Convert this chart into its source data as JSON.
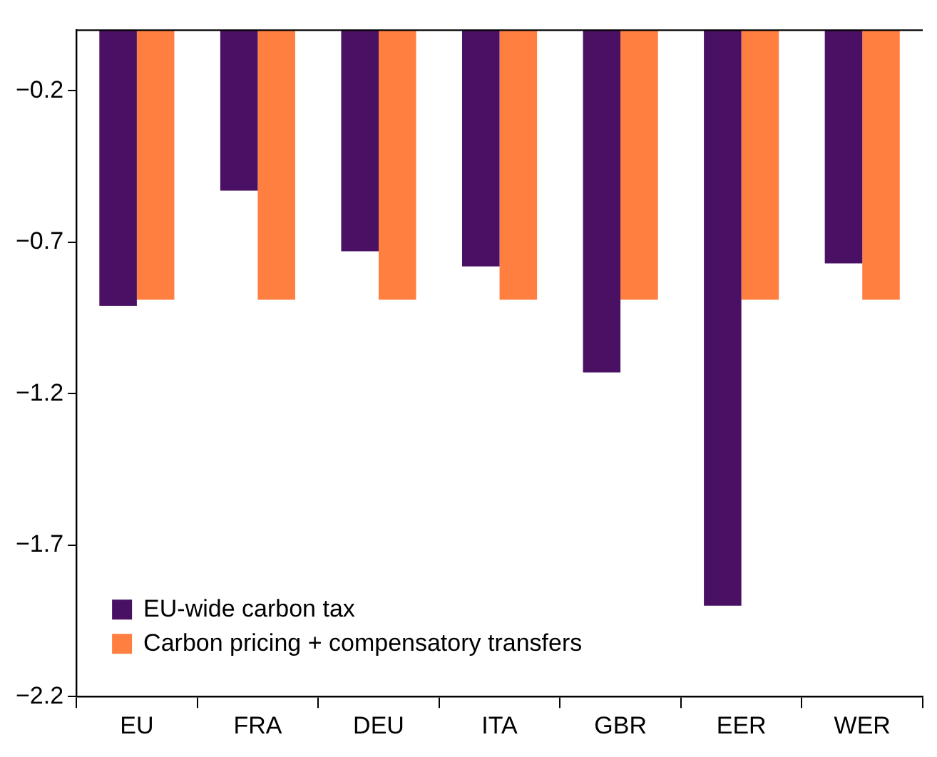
{
  "chart_data": {
    "type": "bar",
    "categories": [
      "EU",
      "FRA",
      "DEU",
      "ITA",
      "GBR",
      "EER",
      "WER"
    ],
    "series": [
      {
        "name": "EU-wide carbon tax",
        "color": "#4a1064",
        "values": [
          -0.91,
          -0.53,
          -0.73,
          -0.78,
          -1.13,
          -1.9,
          -0.77
        ]
      },
      {
        "name": "Carbon pricing + compensatory transfers",
        "color": "#ff7f40",
        "values": [
          -0.89,
          -0.89,
          -0.89,
          -0.89,
          -0.89,
          -0.89,
          -0.89
        ]
      }
    ],
    "ylim": [
      -2.2,
      0
    ],
    "yticks": [
      -0.2,
      -0.7,
      -1.2,
      -1.7,
      -2.2
    ],
    "ref_lines": [
      {
        "axis": "y",
        "value": 0
      }
    ],
    "grid": false,
    "legend": "bottom left"
  }
}
